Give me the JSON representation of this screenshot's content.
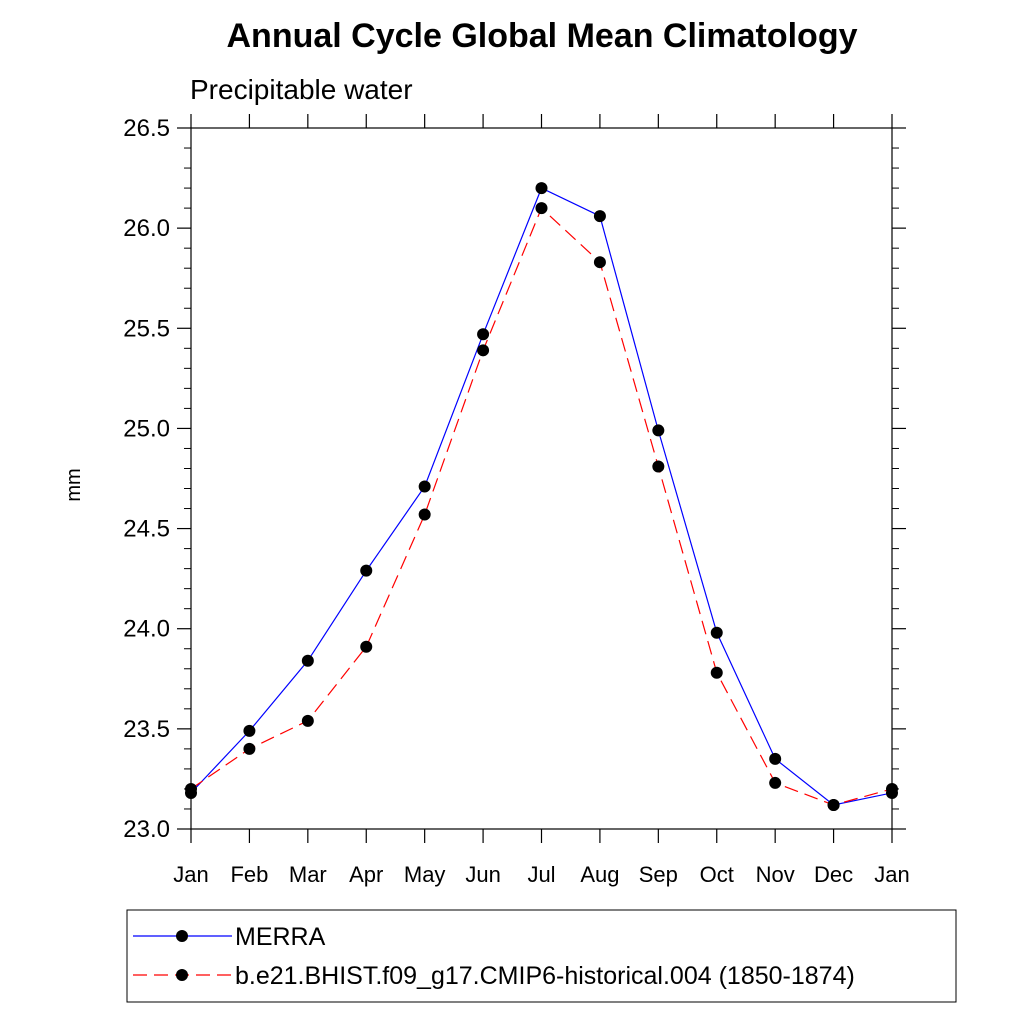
{
  "chart_data": {
    "type": "line",
    "title": "Annual Cycle Global Mean Climatology",
    "subtitle": "Precipitable water",
    "xlabel": "",
    "ylabel": "mm",
    "categories": [
      "Jan",
      "Feb",
      "Mar",
      "Apr",
      "May",
      "Jun",
      "Jul",
      "Aug",
      "Sep",
      "Oct",
      "Nov",
      "Dec",
      "Jan"
    ],
    "ylim": [
      23.0,
      26.5
    ],
    "yticks": [
      "23.0",
      "23.5",
      "24.0",
      "24.5",
      "25.0",
      "25.5",
      "26.0",
      "26.5"
    ],
    "grid": false,
    "legend_position": "bottom",
    "series": [
      {
        "name": "MERRA",
        "color": "#0000ff",
        "dash": "solid",
        "values": [
          23.18,
          23.49,
          23.84,
          24.29,
          24.71,
          25.47,
          26.2,
          26.06,
          24.99,
          23.98,
          23.35,
          23.12,
          23.18
        ]
      },
      {
        "name": "b.e21.BHIST.f09_g17.CMIP6-historical.004 (1850-1874)",
        "color": "#ff0000",
        "dash": "dashed",
        "values": [
          23.2,
          23.4,
          23.54,
          23.91,
          24.57,
          25.39,
          26.1,
          25.83,
          24.81,
          23.78,
          23.23,
          23.12,
          23.2
        ]
      }
    ]
  }
}
